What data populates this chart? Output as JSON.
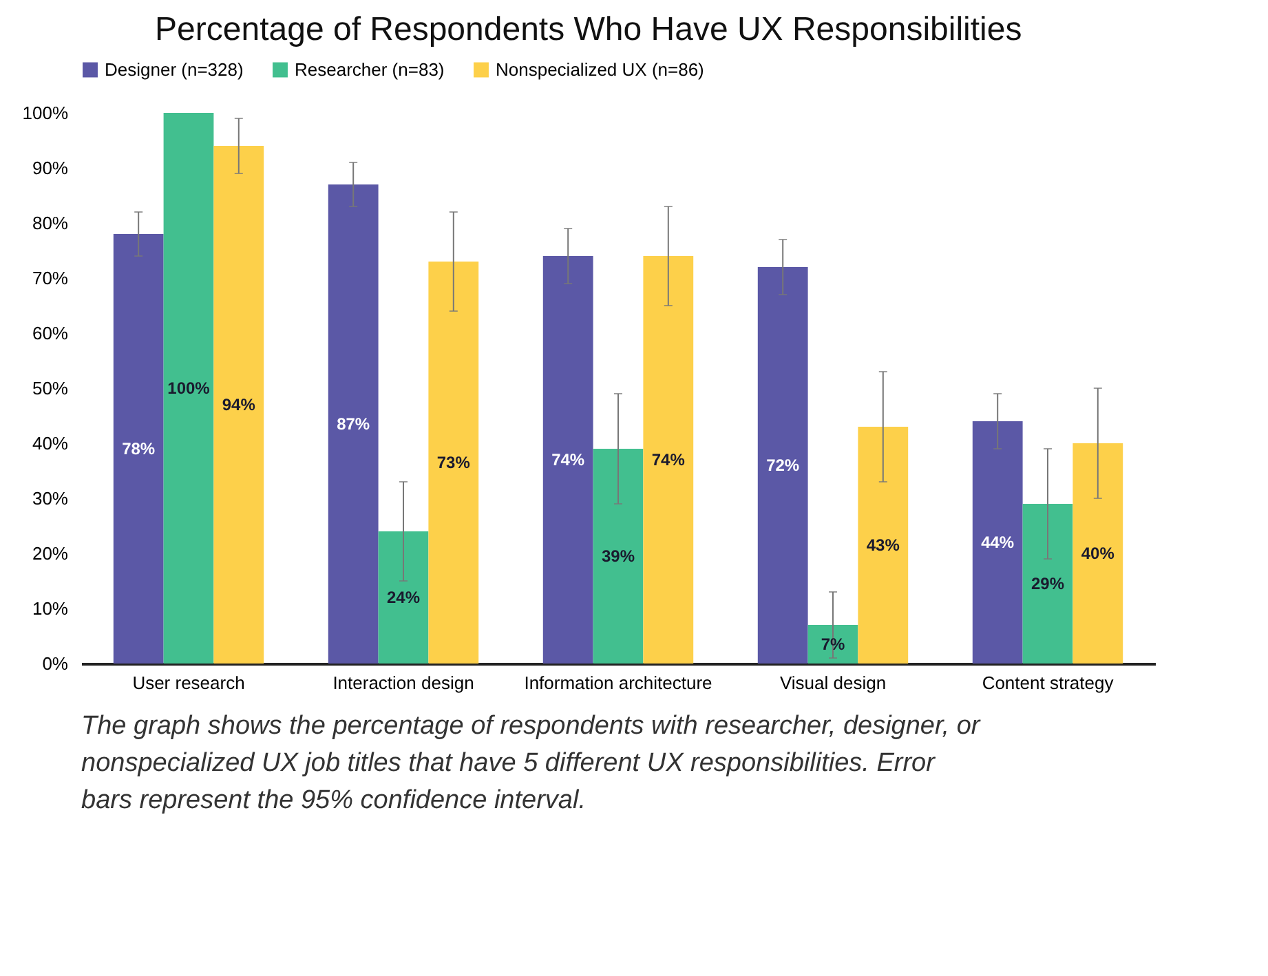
{
  "chart_data": {
    "type": "bar",
    "title": "Percentage of Respondents Who Have UX Responsibilities",
    "categories": [
      "User research",
      "Interaction design",
      "Information architecture",
      "Visual design",
      "Content strategy"
    ],
    "series": [
      {
        "name": "Designer (n=328)",
        "color": "#5b58a6",
        "values": [
          78,
          87,
          74,
          72,
          44
        ],
        "value_labels": [
          "78%",
          "87%",
          "74%",
          "72%",
          "44%"
        ],
        "errors": [
          [
            74,
            82
          ],
          [
            83,
            91
          ],
          [
            69,
            79
          ],
          [
            67,
            77
          ],
          [
            39,
            49
          ]
        ]
      },
      {
        "name": "Researcher (n=83)",
        "color": "#42bf8f",
        "values": [
          100,
          24,
          39,
          7,
          29
        ],
        "value_labels": [
          "100%",
          "24%",
          "39%",
          "7%",
          "29%"
        ],
        "errors": [
          null,
          [
            15,
            33
          ],
          [
            29,
            49
          ],
          [
            1,
            13
          ],
          [
            19,
            39
          ]
        ]
      },
      {
        "name": "Nonspecialized UX (n=86)",
        "color": "#fdd04a",
        "values": [
          94,
          73,
          74,
          43,
          40
        ],
        "value_labels": [
          "94%",
          "73%",
          "74%",
          "43%",
          "40%"
        ],
        "errors": [
          [
            89,
            99
          ],
          [
            64,
            82
          ],
          [
            65,
            83
          ],
          [
            33,
            53
          ],
          [
            30,
            50
          ]
        ]
      }
    ],
    "ylim": [
      0,
      100
    ],
    "yticks": [
      {
        "value": 0,
        "label": "0%"
      },
      {
        "value": 10,
        "label": "10%"
      },
      {
        "value": 20,
        "label": "20%"
      },
      {
        "value": 30,
        "label": "30%"
      },
      {
        "value": 40,
        "label": "40%"
      },
      {
        "value": 50,
        "label": "50%"
      },
      {
        "value": 60,
        "label": "60%"
      },
      {
        "value": 70,
        "label": "70%"
      },
      {
        "value": 80,
        "label": "80%"
      },
      {
        "value": 90,
        "label": "90%"
      },
      {
        "value": 100,
        "label": "100%"
      }
    ],
    "grid": false,
    "legend": "top",
    "annotations": [
      "The graph shows the percentage of respondents with researcher, designer, or nonspecialized UX job titles that have 5 different UX responsibilities. Error bars represent the 95% confidence interval."
    ]
  }
}
